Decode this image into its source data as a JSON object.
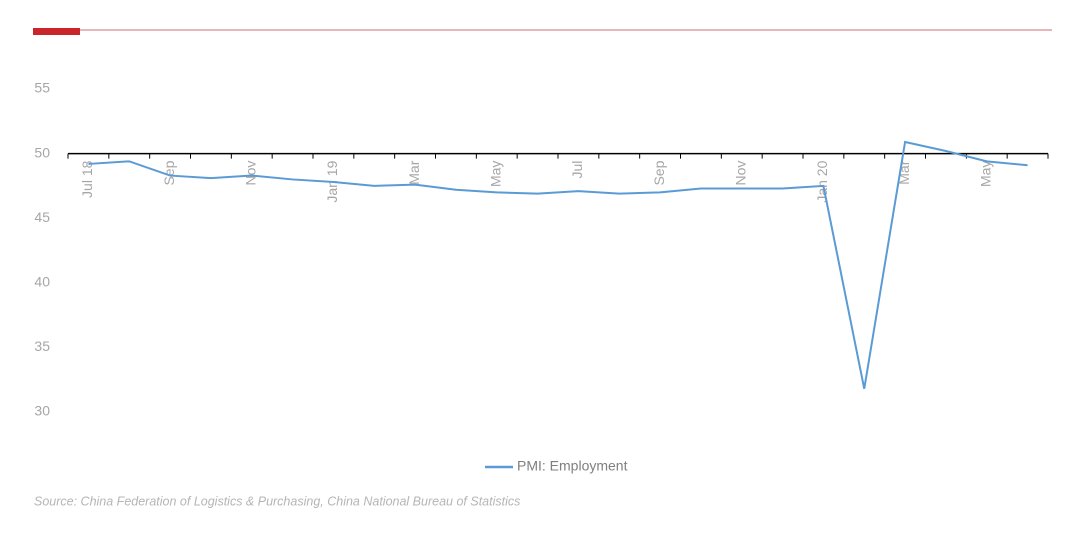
{
  "chart_data": {
    "type": "line",
    "categories": [
      "Jul 18",
      null,
      "Sep",
      null,
      "Nov",
      null,
      "Jan 19",
      null,
      "Mar",
      null,
      "May",
      null,
      "Jul",
      null,
      "Sep",
      null,
      "Nov",
      null,
      "Jan 20",
      null,
      "Mar",
      null,
      "May",
      null
    ],
    "series": [
      {
        "name": "PMI: Employment",
        "color": "#5b9bd5",
        "values": [
          49.2,
          49.4,
          48.3,
          48.1,
          48.3,
          48.0,
          47.8,
          47.5,
          47.6,
          47.2,
          47.0,
          46.9,
          47.1,
          46.9,
          47.0,
          47.3,
          47.3,
          47.3,
          47.5,
          31.8,
          50.9,
          50.2,
          49.4,
          49.1
        ]
      }
    ],
    "ylim": [
      30,
      55
    ],
    "yticks": [
      30,
      35,
      40,
      45,
      50,
      55
    ],
    "x_axis_crosses": 50,
    "source": "Source: China Federation of Logistics & Purchasing, China National Bureau of Statistics"
  }
}
